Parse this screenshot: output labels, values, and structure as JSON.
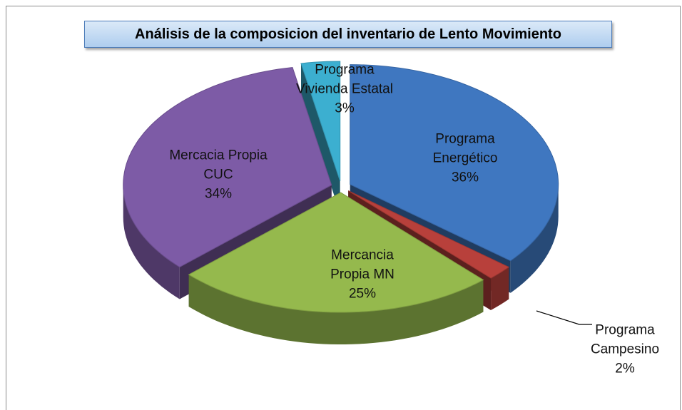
{
  "chart_data": {
    "type": "pie3d",
    "title": "Análisis de la composicion del inventario de Lento Movimiento",
    "categories": [
      "Programa Energético",
      "Programa Campesino",
      "Mercancia Propia MN",
      "Mercacia Propia CUC",
      "Programa Vivienda Estatal"
    ],
    "values": [
      36,
      2,
      25,
      34,
      3
    ],
    "value_labels": [
      "36%",
      "2%",
      "25%",
      "34%",
      "3%"
    ],
    "colors": [
      "#3f77c0",
      "#b8403b",
      "#95b94d",
      "#7d5ba6",
      "#3cafd0"
    ]
  }
}
